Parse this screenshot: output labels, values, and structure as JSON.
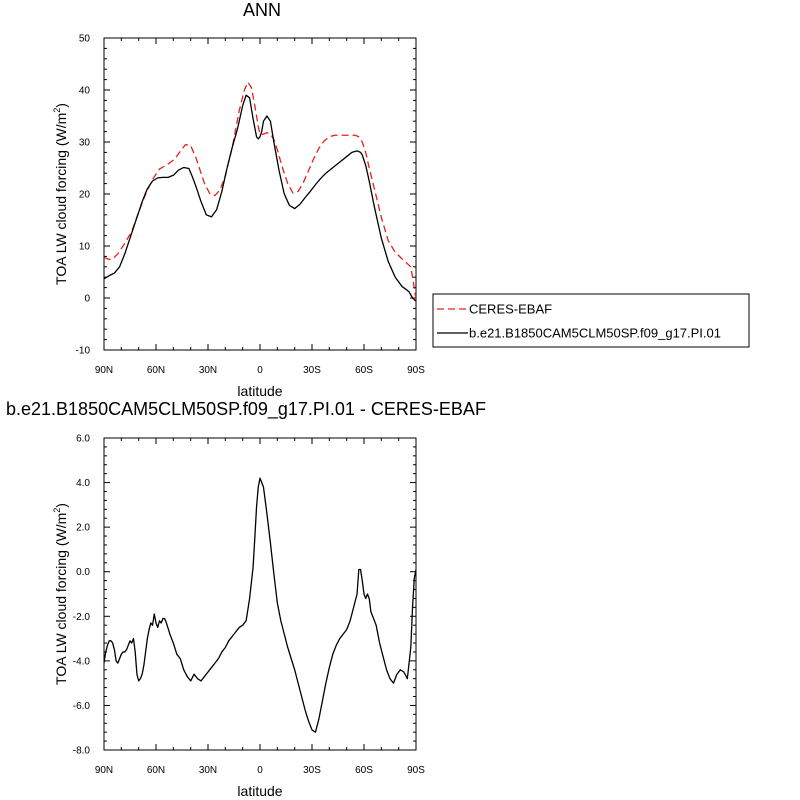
{
  "chart_data": [
    {
      "type": "line",
      "title": "ANN",
      "xlabel": "latitude",
      "ylabel": "TOA LW cloud forcing (W/m",
      "ylabel_sup": "2",
      "ylabel_close": ")",
      "xlim": [
        90,
        -90
      ],
      "ylim": [
        -10,
        50
      ],
      "x_ticks": [
        90,
        60,
        30,
        0,
        -30,
        -60,
        -90
      ],
      "x_tick_labels": [
        "90N",
        "60N",
        "30N",
        "0",
        "30S",
        "60S",
        "90S"
      ],
      "y_ticks": [
        -10,
        0,
        10,
        20,
        30,
        40,
        50
      ],
      "y_tick_labels": [
        "-10",
        "0",
        "10",
        "20",
        "30",
        "40",
        "50"
      ],
      "legend_position": "right",
      "series": [
        {
          "name": "CERES-EBAF",
          "color": "#e8201c",
          "dash": "dashed",
          "x": [
            90,
            87,
            85,
            82,
            78,
            74,
            70,
            66,
            62,
            58,
            55,
            52,
            49,
            46,
            43,
            40,
            37,
            35,
            32,
            29,
            26,
            23,
            20,
            16,
            12,
            9,
            7,
            5,
            3,
            1,
            0,
            -2,
            -4,
            -6,
            -8,
            -10,
            -13,
            -16,
            -19,
            -22,
            -25,
            -28,
            -31,
            -34,
            -37,
            -40,
            -43,
            -46,
            -49,
            -52,
            -55,
            -57,
            -59,
            -61,
            -63,
            -66,
            -70,
            -74,
            -78,
            -82,
            -85,
            -87,
            -89,
            -90
          ],
          "values": [
            7.8,
            7.4,
            7.5,
            8.5,
            10.5,
            12.8,
            16.5,
            20.0,
            22.8,
            24.8,
            25.4,
            26.0,
            26.8,
            28.2,
            29.5,
            29.3,
            27.0,
            25.0,
            22.0,
            20.1,
            19.7,
            20.8,
            23.5,
            29.0,
            36.0,
            40.0,
            41.5,
            40.5,
            37.0,
            33.0,
            31.5,
            31.5,
            31.8,
            31.5,
            30.5,
            28.5,
            25.0,
            22.0,
            20.2,
            20.5,
            22.2,
            24.5,
            26.8,
            28.8,
            30.2,
            31.0,
            31.3,
            31.3,
            31.3,
            31.3,
            31.3,
            31.0,
            30.0,
            28.0,
            25.0,
            21.0,
            15.5,
            11.0,
            8.8,
            7.5,
            6.6,
            6.0,
            2.0,
            -0.3
          ]
        },
        {
          "name": "b.e21.B1850CAM5CLM50SP.f09_g17.PI.01",
          "color": "#000000",
          "dash": "solid",
          "x": [
            90,
            87,
            84,
            81,
            78,
            75,
            72,
            68,
            65,
            62,
            59,
            56,
            53,
            50,
            47,
            44,
            41,
            39,
            37,
            34,
            31,
            28,
            25,
            22,
            19,
            16,
            13,
            10,
            8,
            6,
            4,
            2,
            1,
            0,
            -1,
            -2,
            -4,
            -6,
            -8,
            -11,
            -14,
            -17,
            -20,
            -23,
            -26,
            -29,
            -32,
            -35,
            -38,
            -41,
            -44,
            -47,
            -50,
            -53,
            -56,
            -58,
            -59,
            -61,
            -63,
            -66,
            -70,
            -74,
            -78,
            -82,
            -86,
            -88,
            -90
          ],
          "values": [
            3.7,
            4.3,
            4.8,
            6.0,
            8.5,
            11.5,
            14.5,
            18.5,
            21.0,
            22.5,
            23.1,
            23.2,
            23.2,
            23.6,
            24.6,
            25.1,
            24.9,
            23.3,
            21.5,
            18.5,
            16.0,
            15.6,
            17.0,
            20.5,
            25.0,
            29.0,
            32.5,
            37.0,
            39.0,
            38.5,
            34.5,
            31.0,
            30.6,
            31.0,
            32.0,
            34.0,
            35.0,
            34.0,
            30.0,
            24.5,
            20.0,
            17.8,
            17.2,
            18.0,
            19.3,
            20.5,
            21.8,
            23.0,
            24.0,
            24.8,
            25.6,
            26.4,
            27.2,
            28.0,
            28.3,
            28.0,
            27.5,
            25.5,
            22.5,
            17.5,
            11.5,
            7.0,
            4.0,
            2.2,
            1.2,
            0.0,
            -0.6
          ]
        }
      ]
    },
    {
      "type": "line",
      "title": "b.e21.B1850CAM5CLM50SP.f09_g17.PI.01 - CERES-EBAF",
      "xlabel": "latitude",
      "ylabel": "TOA LW cloud forcing (W/m",
      "ylabel_sup": "2",
      "ylabel_close": ")",
      "xlim": [
        90,
        -90
      ],
      "ylim": [
        -8,
        6
      ],
      "x_ticks": [
        90,
        60,
        30,
        0,
        -30,
        -60,
        -90
      ],
      "x_tick_labels": [
        "90N",
        "60N",
        "30N",
        "0",
        "30S",
        "60S",
        "90S"
      ],
      "y_ticks": [
        -8,
        -6,
        -4,
        -2,
        0,
        2,
        4,
        6
      ],
      "y_tick_labels": [
        "-8.0",
        "-6.0",
        "-4.0",
        "-2.0",
        "0.0",
        "2.0",
        "4.0",
        "6.0"
      ],
      "series": [
        {
          "color": "#000000",
          "dash": "solid",
          "x": [
            90,
            89,
            88,
            87,
            86,
            85,
            84,
            83,
            82,
            81,
            80,
            79,
            78,
            77,
            76,
            75,
            74,
            73,
            72,
            71,
            70,
            69,
            68,
            67,
            66,
            65,
            64,
            63,
            62,
            61,
            60,
            59,
            58,
            57,
            56,
            55,
            54,
            52,
            50,
            48,
            46,
            44,
            42,
            40,
            38,
            36,
            34,
            32,
            30,
            28,
            26,
            24,
            22,
            20,
            18,
            16,
            14,
            12,
            10,
            8,
            6,
            4,
            3,
            2,
            1,
            0,
            -2,
            -4,
            -6,
            -8,
            -10,
            -12,
            -14,
            -16,
            -18,
            -20,
            -22,
            -24,
            -26,
            -28,
            -30,
            -32,
            -34,
            -36,
            -38,
            -40,
            -42,
            -44,
            -46,
            -48,
            -50,
            -52,
            -54,
            -56,
            -57,
            -58,
            -59,
            -60,
            -61,
            -62,
            -63,
            -64,
            -65,
            -67,
            -69,
            -71,
            -73,
            -75,
            -77,
            -79,
            -81,
            -83,
            -85,
            -87,
            -88,
            -89,
            -90
          ],
          "values": [
            -4.1,
            -3.6,
            -3.3,
            -3.1,
            -3.1,
            -3.2,
            -3.5,
            -4.0,
            -4.1,
            -3.9,
            -3.7,
            -3.6,
            -3.6,
            -3.5,
            -3.3,
            -3.1,
            -3.2,
            -3.0,
            -3.6,
            -4.6,
            -4.9,
            -4.8,
            -4.6,
            -4.2,
            -3.6,
            -3.0,
            -2.6,
            -2.3,
            -2.4,
            -1.9,
            -2.3,
            -2.5,
            -2.2,
            -2.3,
            -2.1,
            -2.1,
            -2.3,
            -2.8,
            -3.2,
            -3.7,
            -3.9,
            -4.4,
            -4.7,
            -4.9,
            -4.6,
            -4.8,
            -4.9,
            -4.7,
            -4.5,
            -4.3,
            -4.1,
            -3.9,
            -3.6,
            -3.4,
            -3.1,
            -2.9,
            -2.7,
            -2.5,
            -2.4,
            -2.2,
            -1.2,
            0.2,
            1.5,
            2.9,
            3.8,
            4.2,
            3.8,
            2.6,
            1.3,
            -0.1,
            -1.4,
            -2.2,
            -2.8,
            -3.4,
            -3.9,
            -4.4,
            -5.0,
            -5.6,
            -6.2,
            -6.7,
            -7.1,
            -7.2,
            -6.6,
            -5.8,
            -5.0,
            -4.3,
            -3.7,
            -3.3,
            -3.0,
            -2.8,
            -2.6,
            -2.2,
            -1.6,
            -1.0,
            0.1,
            0.1,
            -0.4,
            -1.0,
            -1.2,
            -1.0,
            -1.2,
            -1.8,
            -2.0,
            -2.4,
            -3.2,
            -3.8,
            -4.4,
            -4.8,
            -5.0,
            -4.6,
            -4.4,
            -4.5,
            -4.8,
            -3.4,
            -1.6,
            -0.3,
            0.1
          ]
        }
      ]
    }
  ]
}
